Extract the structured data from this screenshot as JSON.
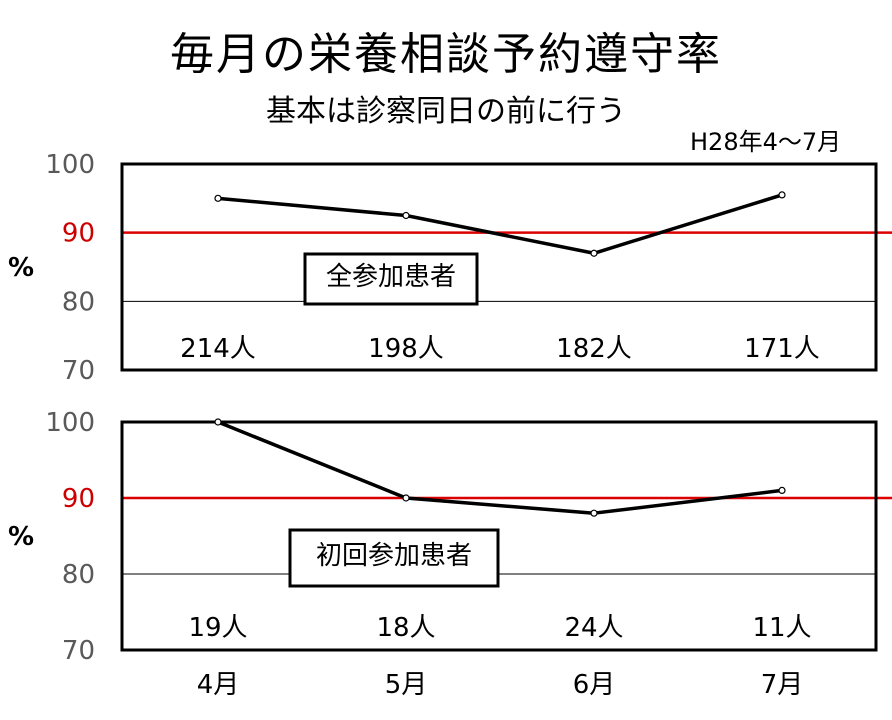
{
  "title": "毎月の栄養相談予約遵守率",
  "subtitle": "基本は診察同日の前に行う",
  "period": "H28年4～7月",
  "chart_data": [
    {
      "type": "line",
      "label": "全参加患者",
      "categories": [
        "4月",
        "5月",
        "6月",
        "7月"
      ],
      "values": [
        95,
        92.5,
        87,
        95.5
      ],
      "counts": [
        "214人",
        "198人",
        "182人",
        "171人"
      ],
      "reference_line": 90,
      "reference_color": "#dd0000",
      "ylim": [
        70,
        100
      ],
      "yticks": [
        "100",
        "90",
        "80",
        "70"
      ],
      "ylabel": "%"
    },
    {
      "type": "line",
      "label": "初回参加患者",
      "categories": [
        "4月",
        "5月",
        "6月",
        "7月"
      ],
      "values": [
        100,
        90,
        88,
        91
      ],
      "counts": [
        "19人",
        "18人",
        "24人",
        "11人"
      ],
      "reference_line": 90,
      "reference_color": "#dd0000",
      "ylim": [
        70,
        100
      ],
      "yticks": [
        "100",
        "90",
        "80",
        "70"
      ],
      "ylabel": "%"
    }
  ],
  "x_labels": [
    "4月",
    "5月",
    "6月",
    "7月"
  ]
}
